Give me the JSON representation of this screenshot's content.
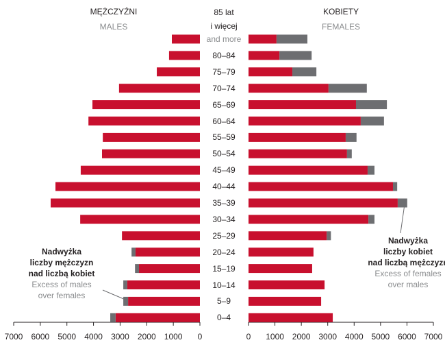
{
  "chart_data": {
    "type": "bar",
    "categories": [
      "85 lat\ni więcej",
      "80–84",
      "75–79",
      "70–74",
      "65–69",
      "60–64",
      "55–59",
      "50–54",
      "45–49",
      "40–44",
      "35–39",
      "30–34",
      "25–29",
      "20–24",
      "15–19",
      "10–14",
      "5–9",
      "0–4"
    ],
    "category_note": "and more",
    "left": {
      "title": "MĘŻCZYŹNI",
      "subtitle": "MALES",
      "xlim": [
        0,
        7000
      ],
      "xticks": [
        0,
        1000,
        2000,
        3000,
        4000,
        5000,
        6000,
        7000
      ],
      "series": [
        {
          "color": "#c8102e",
          "values": [
            1055,
            1160,
            1620,
            3040,
            4040,
            4190,
            3650,
            3680,
            4480,
            5430,
            5610,
            4500,
            2930,
            2420,
            2290,
            2730,
            2700,
            3170
          ]
        },
        {
          "color": "#6d6e71",
          "values": [
            0,
            0,
            0,
            0,
            0,
            0,
            0,
            0,
            0,
            0,
            0,
            0,
            0,
            150,
            150,
            150,
            180,
            200
          ]
        }
      ]
    },
    "right": {
      "title": "KOBIETY",
      "subtitle": "FEMALES",
      "xlim": [
        0,
        7000
      ],
      "xticks": [
        0,
        1000,
        2000,
        3000,
        4000,
        5000,
        6000,
        7000
      ],
      "series": [
        {
          "color": "#c8102e",
          "values": [
            1060,
            1170,
            1660,
            3030,
            4070,
            4250,
            3680,
            3730,
            4510,
            5470,
            5650,
            4540,
            2960,
            2460,
            2410,
            2880,
            2750,
            3190
          ]
        },
        {
          "color": "#6d6e71",
          "values": [
            1170,
            1220,
            910,
            1450,
            1170,
            880,
            410,
            180,
            260,
            160,
            360,
            230,
            160,
            0,
            0,
            0,
            0,
            0
          ]
        }
      ]
    },
    "annotations": [
      {
        "lines": [
          "Nadwyżka",
          "liczby mężczyzn",
          "nad liczbą kobiet"
        ],
        "lines_en": [
          "Excess of males",
          "over females"
        ]
      },
      {
        "lines": [
          "Nadwyżka",
          "liczby kobiet",
          "nad liczbą mężczyzn"
        ],
        "lines_en": [
          "Excess of females",
          "over males"
        ]
      }
    ]
  }
}
